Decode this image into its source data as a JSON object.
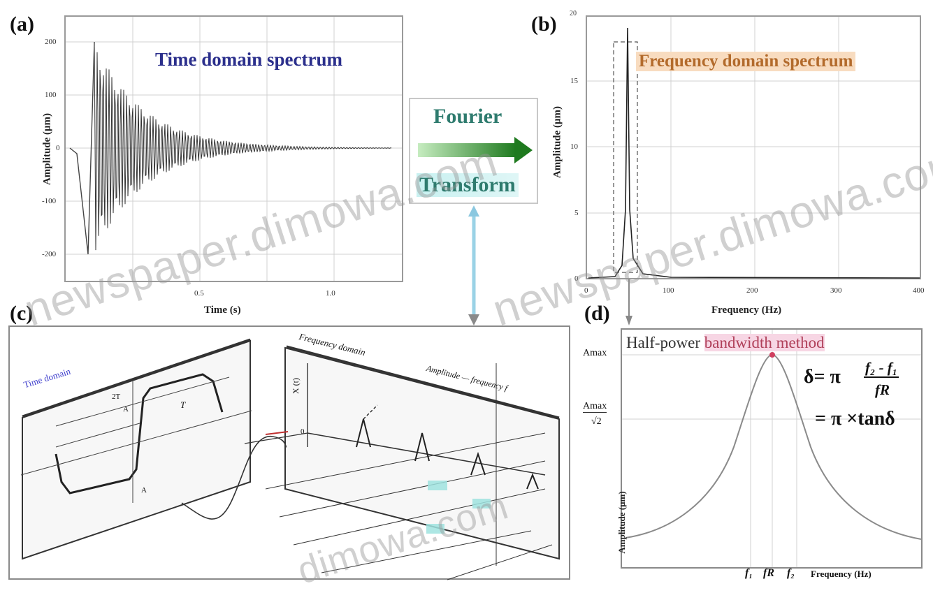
{
  "figure": {
    "panel_a": {
      "label": "(a)",
      "title": "Time domain spectrum",
      "ylabel": "Amplitude (μm)",
      "xlabel": "Time (s)",
      "yticks": [
        "200",
        "100",
        "0",
        "-100",
        "-200"
      ],
      "xticks": [
        "0.5",
        "1.0"
      ]
    },
    "panel_b": {
      "label": "(b)",
      "title": "Frequency domain spectrum",
      "ylabel": "Amplitude (μm)",
      "xlabel": "Frequency (Hz)",
      "ytop": "20",
      "yticks": [
        "15",
        "10",
        "5",
        "0"
      ],
      "xticks": [
        "0",
        "100",
        "200",
        "300",
        "400"
      ]
    },
    "fourier": {
      "line1": "Fourier",
      "line2": "Transform"
    },
    "panel_c": {
      "label": "(c)",
      "time_domain": "Time domain",
      "freq_domain": "Frequency domain",
      "freq_axis": "Amplitude — frequency f",
      "x_label": "X (t)",
      "mid_labels": [
        "T",
        "2T",
        "A",
        "A"
      ],
      "origin": "0"
    },
    "panel_d": {
      "label": "(d)",
      "title_part1": "Half-power ",
      "title_part2": "bandwidth method",
      "amax": "Amax",
      "amax_sqrt_num": "Amax",
      "amax_sqrt_den": "√2",
      "formula_lhs": "δ= π",
      "formula_num": "f₂ - f₁",
      "formula_den": "fR",
      "formula_line2": "= π ×tanδ",
      "ylabel": "Amplitude (μm)",
      "xticks": [
        "f₁",
        "fR",
        "f₂"
      ],
      "xlabel": "Frequency (Hz)"
    },
    "watermarks": [
      "newspaper.dimowa.com",
      "newspaper.dimowa.com",
      "dimowa.com"
    ]
  },
  "colors": {
    "frame": "#9a9a9a",
    "title_blue": "#2b2f8c",
    "orange_bg": "#f8dcc0",
    "pink_bg": "#f7d6e4",
    "arrow_green": "#2e8b2e",
    "blue_text": "#3d3dcc"
  }
}
